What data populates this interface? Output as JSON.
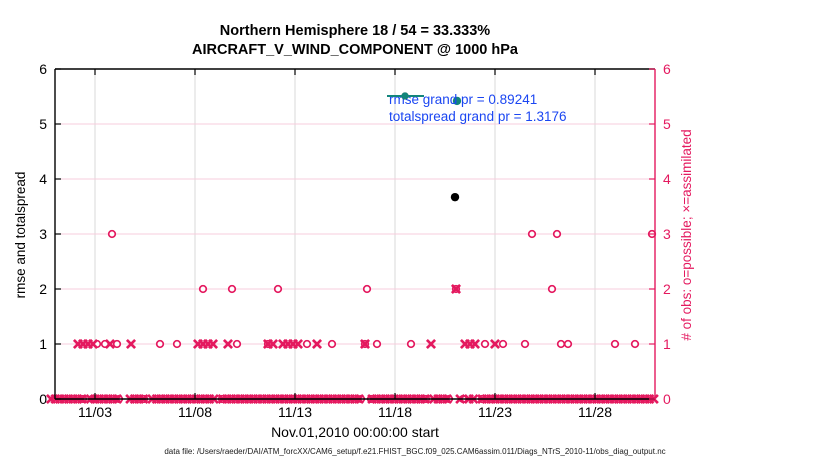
{
  "title": {
    "line1": "Northern Hemisphere 18 / 54 = 33.333%",
    "line2": "AIRCRAFT_V_WIND_COMPONENT @ 1000 hPa"
  },
  "axes": {
    "left_label": "rmse and totalspread",
    "right_label": "# of obs: o=possible; ×=assimilated",
    "x_label": "Nov.01,2010 00:00:00 start",
    "x_ticks": [
      {
        "day": 3,
        "label": "11/03"
      },
      {
        "day": 8,
        "label": "11/08"
      },
      {
        "day": 13,
        "label": "11/13"
      },
      {
        "day": 18,
        "label": "11/18"
      },
      {
        "day": 23,
        "label": "11/23"
      },
      {
        "day": 28,
        "label": "11/28"
      }
    ],
    "y_ticks": [
      "0",
      "1",
      "2",
      "3",
      "4",
      "5",
      "6"
    ]
  },
  "legend": [
    {
      "name": "rmse",
      "label": "rmse grand pr = 0.89241",
      "color": "#000000"
    },
    {
      "name": "totalspread",
      "label": "totalspread grand pr = 1.3176",
      "color": "#12857b"
    }
  ],
  "footer": {
    "data_file": "data file: /Users/raeder/DAI/ATM_forcXX/CAM6_setup/f.e21.FHIST_BGC.f09_025.CAM6assim.011/Diags_NTrS_2010-11/obs_diag_output.nc"
  },
  "colors": {
    "obs_pink": "#e4195f",
    "grid_pink": "#f7cddc",
    "grid_gray": "#d9d9d9",
    "legend_text_blue": "#1b46f2",
    "rmse_black": "#000000",
    "totalspread_teal": "#12857b"
  },
  "chart_data": {
    "type": "scatter",
    "title": "Northern Hemisphere 18 / 54 = 33.333% — AIRCRAFT_V_WIND_COMPONENT @ 1000 hPa",
    "xlabel": "Nov.01,2010 00:00:00 start",
    "ylabel_left": "rmse and totalspread",
    "ylabel_right": "# of obs: o=possible; ×=assimilated",
    "x_unit": "day of November 2010",
    "x_range": [
      1,
      31
    ],
    "ylim_left": [
      0,
      6
    ],
    "ylim_right": [
      0,
      6
    ],
    "grid": true,
    "legend_position": "top-right-inside",
    "series": [
      {
        "name": "rmse",
        "axis": "left",
        "marker": "filled-circle",
        "color": "#000000",
        "points": [
          [
            21.0,
            3.67
          ]
        ]
      },
      {
        "name": "totalspread",
        "axis": "left",
        "marker": "filled-circle",
        "color": "#12857b",
        "points": [
          [
            21.1,
            5.42
          ]
        ]
      },
      {
        "name": "obs_possible",
        "axis": "right",
        "marker": "circle",
        "color": "#e4195f",
        "points": [
          [
            3.85,
            3
          ],
          [
            24.85,
            3
          ],
          [
            26.1,
            3
          ],
          [
            30.85,
            3
          ],
          [
            8.4,
            2
          ],
          [
            9.85,
            2
          ],
          [
            12.15,
            2
          ],
          [
            16.6,
            2
          ],
          [
            21.05,
            2
          ],
          [
            25.85,
            2
          ],
          [
            3.1,
            1
          ],
          [
            3.5,
            1
          ],
          [
            4.1,
            1
          ],
          [
            6.25,
            1
          ],
          [
            7.1,
            1
          ],
          [
            10.1,
            1
          ],
          [
            11.65,
            1
          ],
          [
            13.6,
            1
          ],
          [
            14.85,
            1
          ],
          [
            16.5,
            1
          ],
          [
            17.1,
            1
          ],
          [
            18.8,
            1
          ],
          [
            22.5,
            1
          ],
          [
            23.4,
            1
          ],
          [
            24.5,
            1
          ],
          [
            26.3,
            1
          ],
          [
            26.65,
            1
          ],
          [
            29.0,
            1
          ],
          [
            30.0,
            1
          ]
        ]
      },
      {
        "name": "obs_assimilated",
        "axis": "right",
        "marker": "cross",
        "color": "#e4195f",
        "points": [
          [
            21.05,
            2
          ],
          [
            2.15,
            1
          ],
          [
            2.4,
            1
          ],
          [
            2.65,
            1
          ],
          [
            2.9,
            1
          ],
          [
            3.75,
            1
          ],
          [
            4.8,
            1
          ],
          [
            8.15,
            1
          ],
          [
            8.4,
            1
          ],
          [
            8.65,
            1
          ],
          [
            8.9,
            1
          ],
          [
            9.65,
            1
          ],
          [
            11.65,
            1
          ],
          [
            11.9,
            1
          ],
          [
            12.4,
            1
          ],
          [
            12.65,
            1
          ],
          [
            12.9,
            1
          ],
          [
            13.15,
            1
          ],
          [
            14.1,
            1
          ],
          [
            16.5,
            1
          ],
          [
            19.8,
            1
          ],
          [
            21.5,
            1
          ],
          [
            21.75,
            1
          ],
          [
            22.0,
            1
          ],
          [
            23.0,
            1
          ]
        ]
      }
    ],
    "zero_band": {
      "comment": "dense overlapping cross markers at value 0 across whole record",
      "marker": "cross",
      "value": 0,
      "color": "#e4195f",
      "day_start": 0.8,
      "day_end": 31.15,
      "step": 0.22,
      "gaps": [
        [
          2.45,
          2.78
        ],
        [
          4.25,
          4.55
        ],
        [
          5.5,
          5.72
        ],
        [
          9.05,
          9.3
        ],
        [
          16.35,
          16.75
        ],
        [
          19.6,
          19.82
        ],
        [
          20.75,
          21.08
        ],
        [
          21.45,
          21.65
        ],
        [
          22.08,
          22.3
        ]
      ],
      "circle_days": [
        2.4,
        2.85,
        4.2,
        5.45,
        9.35,
        16.3,
        16.8,
        19.55,
        20.7,
        21.4,
        22.35
      ]
    }
  }
}
